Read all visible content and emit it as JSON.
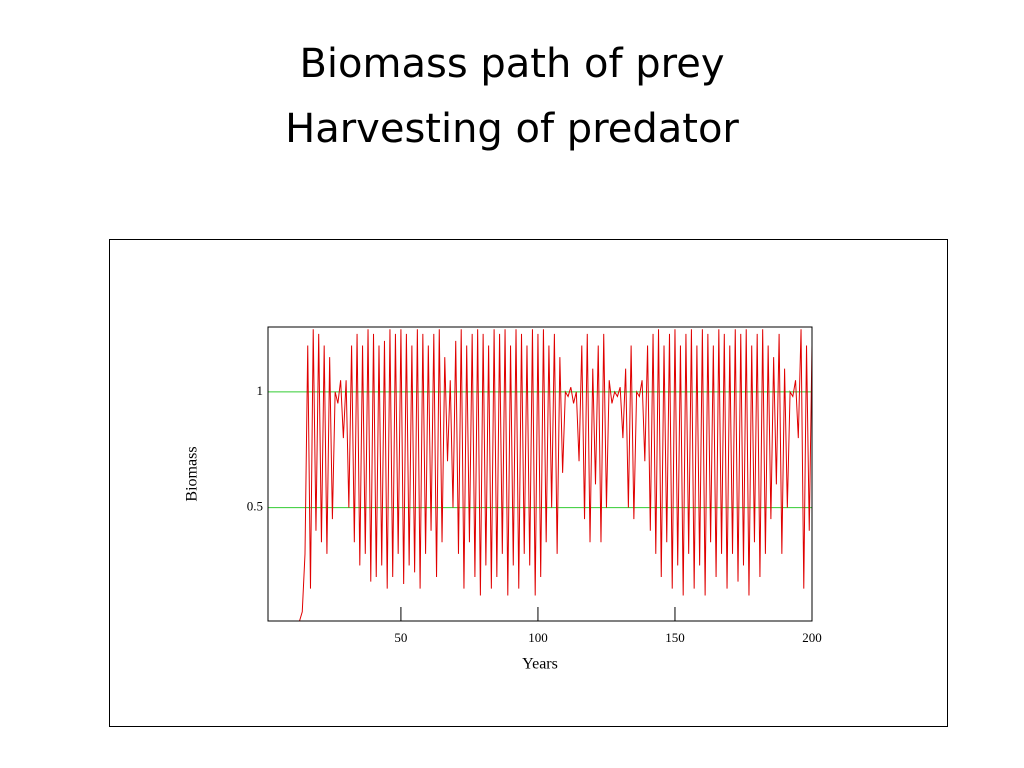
{
  "chart_data": {
    "type": "line",
    "title": "Biomass path of prey",
    "subtitle": "Harvesting of predator",
    "x_label": "Years",
    "y_label": "Biomass",
    "color": "#e00000",
    "grid_color": "#33cc33",
    "grid": true,
    "xlim": [
      1.5,
      200
    ],
    "ylim": [
      0.01,
      1.28
    ],
    "xticks": [
      50,
      100,
      150,
      200
    ],
    "yticks": [
      0.5,
      1
    ],
    "x": [
      13,
      14,
      15,
      16,
      17,
      18,
      19,
      20,
      21,
      22,
      23,
      24,
      25,
      26,
      27,
      28,
      29,
      30,
      31,
      32,
      33,
      34,
      35,
      36,
      37,
      38,
      39,
      40,
      41,
      42,
      43,
      44,
      45,
      46,
      47,
      48,
      49,
      50,
      51,
      52,
      53,
      54,
      55,
      56,
      57,
      58,
      59,
      60,
      61,
      62,
      63,
      64,
      65,
      66,
      67,
      68,
      69,
      70,
      71,
      72,
      73,
      74,
      75,
      76,
      77,
      78,
      79,
      80,
      81,
      82,
      83,
      84,
      85,
      86,
      87,
      88,
      89,
      90,
      91,
      92,
      93,
      94,
      95,
      96,
      97,
      98,
      99,
      100,
      101,
      102,
      103,
      104,
      105,
      106,
      107,
      108,
      109,
      110,
      111,
      112,
      113,
      114,
      115,
      116,
      117,
      118,
      119,
      120,
      121,
      122,
      123,
      124,
      125,
      126,
      127,
      128,
      129,
      130,
      131,
      132,
      133,
      134,
      135,
      136,
      137,
      138,
      139,
      140,
      141,
      142,
      143,
      144,
      145,
      146,
      147,
      148,
      149,
      150,
      151,
      152,
      153,
      154,
      155,
      156,
      157,
      158,
      159,
      160,
      161,
      162,
      163,
      164,
      165,
      166,
      167,
      168,
      169,
      170,
      171,
      172,
      173,
      174,
      175,
      176,
      177,
      178,
      179,
      180,
      181,
      182,
      183,
      184,
      185,
      186,
      187,
      188,
      189,
      190,
      191,
      192,
      193,
      194,
      195,
      196,
      197,
      198,
      199,
      200
    ],
    "values": [
      0.01,
      0.05,
      0.3,
      1.2,
      0.15,
      1.27,
      0.4,
      1.25,
      0.35,
      1.2,
      0.3,
      1.15,
      0.45,
      1.0,
      0.95,
      1.05,
      0.8,
      1.05,
      0.5,
      1.2,
      0.35,
      1.25,
      0.25,
      1.2,
      0.3,
      1.27,
      0.18,
      1.25,
      0.2,
      1.2,
      0.25,
      1.22,
      0.15,
      1.27,
      0.2,
      1.25,
      0.3,
      1.27,
      0.17,
      1.25,
      0.25,
      1.2,
      0.22,
      1.27,
      0.15,
      1.25,
      0.3,
      1.2,
      0.4,
      1.25,
      0.2,
      1.27,
      0.35,
      1.15,
      0.7,
      1.05,
      0.5,
      1.22,
      0.3,
      1.27,
      0.15,
      1.2,
      0.35,
      1.25,
      0.2,
      1.27,
      0.12,
      1.25,
      0.25,
      1.2,
      0.15,
      1.27,
      0.2,
      1.25,
      0.3,
      1.27,
      0.12,
      1.2,
      0.25,
      1.27,
      0.15,
      1.25,
      0.3,
      1.2,
      0.25,
      1.27,
      0.12,
      1.25,
      0.2,
      1.27,
      0.35,
      1.2,
      0.5,
      1.25,
      0.3,
      1.15,
      0.65,
      1.0,
      0.98,
      1.02,
      0.95,
      1.0,
      0.7,
      1.2,
      0.45,
      1.25,
      0.35,
      1.1,
      0.6,
      1.2,
      0.35,
      1.25,
      0.5,
      1.05,
      0.95,
      1.0,
      0.98,
      1.02,
      0.8,
      1.1,
      0.5,
      1.2,
      0.45,
      1.0,
      0.98,
      1.05,
      0.7,
      1.2,
      0.4,
      1.25,
      0.3,
      1.27,
      0.2,
      1.2,
      0.35,
      1.25,
      0.15,
      1.27,
      0.25,
      1.2,
      0.12,
      1.25,
      0.3,
      1.27,
      0.15,
      1.2,
      0.25,
      1.27,
      0.12,
      1.25,
      0.35,
      1.2,
      0.2,
      1.27,
      0.3,
      1.25,
      0.15,
      1.2,
      0.3,
      1.27,
      0.18,
      1.25,
      0.25,
      1.27,
      0.12,
      1.2,
      0.35,
      1.25,
      0.2,
      1.27,
      0.3,
      1.2,
      0.45,
      1.15,
      0.6,
      1.25,
      0.3,
      1.1,
      0.5,
      1.0,
      0.98,
      1.05,
      0.8,
      1.27,
      0.15,
      1.2,
      0.4,
      1.2
    ]
  }
}
